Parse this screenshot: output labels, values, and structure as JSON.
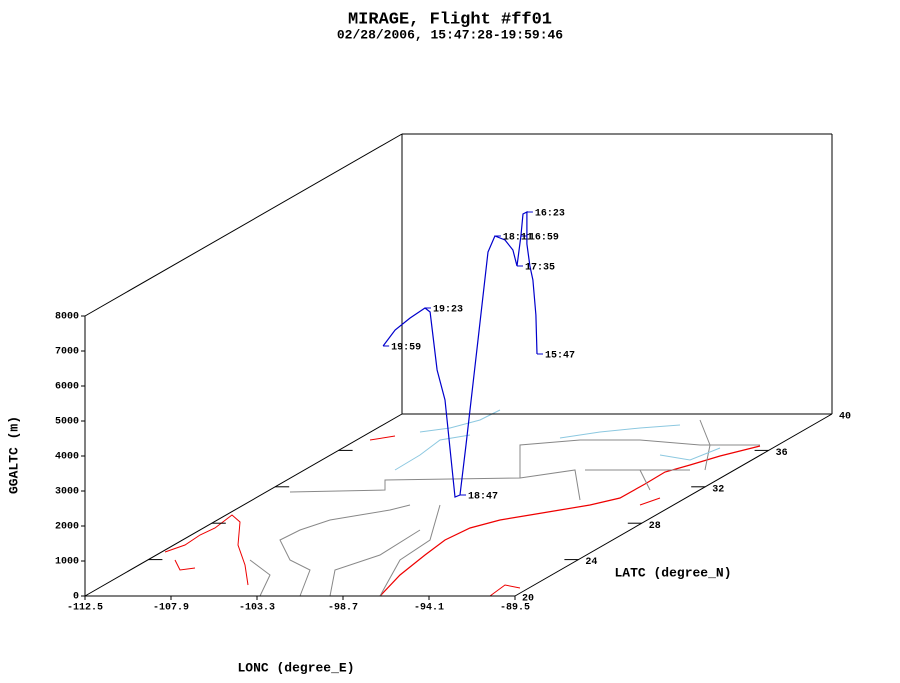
{
  "chart_data": {
    "type": "track3d",
    "title": "MIRAGE, Flight #ff01",
    "subtitle": "02/28/2006, 15:47:28-19:59:46",
    "xlabel": "LONC (degree_E)",
    "ylabel": "LATC (degree_N)",
    "zlabel": "GGALTC (m)",
    "xlim": [
      -112.5,
      -89.5
    ],
    "xticks": [
      -112.5,
      -107.9,
      -103.3,
      -98.7,
      -94.1,
      -89.5
    ],
    "ylim": [
      20,
      40
    ],
    "yticks": [
      20,
      24,
      28,
      32,
      36,
      40
    ],
    "zlim": [
      0,
      8000
    ],
    "zticks": [
      0,
      1000,
      2000,
      3000,
      4000,
      5000,
      6000,
      7000,
      8000
    ],
    "color": "#0000cc",
    "track": {
      "lon": [
        -101.04,
        -101.1,
        -101.26,
        -101.42,
        -101.58,
        -101.58,
        -101.79,
        -101.9,
        -102.11,
        -102.33,
        -102.75,
        -103.29,
        -103.66,
        -102.5,
        -101.23,
        -100.6,
        -100.24,
        -100.51,
        -102.57,
        -104.69,
        -106.76,
        -107.03,
        -107.83,
        -108.63,
        -109.27
      ],
      "lat": [
        35,
        35,
        35,
        35,
        35,
        35,
        35,
        35,
        35,
        35,
        35,
        35,
        35,
        33,
        31,
        30,
        29.2,
        29.2,
        31,
        33,
        35,
        35,
        35,
        35,
        35
      ],
      "alt": [
        3014,
        4129,
        5129,
        5529,
        6157,
        7071,
        7014,
        6386,
        5529,
        5986,
        6271,
        6386,
        5929,
        3934,
        2454,
        1714,
        494,
        437,
        2740,
        3077,
        4214,
        4329,
        4043,
        3700,
        3243
      ]
    },
    "annotations": [
      {
        "label": "15:47",
        "lon": -101.04,
        "lat": 35,
        "alt": 3014
      },
      {
        "label": "16:23",
        "lon": -101.58,
        "lat": 35,
        "alt": 7071
      },
      {
        "label": "16:59",
        "lon": -101.9,
        "lat": 35,
        "alt": 6386
      },
      {
        "label": "17:35",
        "lon": -102.11,
        "lat": 35,
        "alt": 5529
      },
      {
        "label": "18:11",
        "lon": -103.29,
        "lat": 35,
        "alt": 6386
      },
      {
        "label": "18:47",
        "lon": -100.24,
        "lat": 29.2,
        "alt": 494
      },
      {
        "label": "19:23",
        "lon": -107.03,
        "lat": 35,
        "alt": 4329
      },
      {
        "label": "19:59",
        "lon": -109.27,
        "lat": 35,
        "alt": 3243
      }
    ]
  }
}
